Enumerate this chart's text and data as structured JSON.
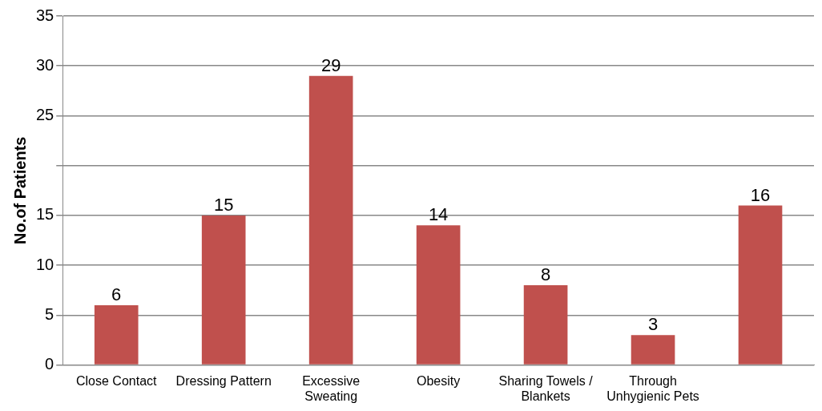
{
  "chart_data": {
    "type": "bar",
    "ylabel": "No.of Patients",
    "categories": [
      "Close Contact",
      "Dressing Pattern",
      "Excessive Sweating",
      "Obesity",
      "Sharing Towels / Blankets",
      "Through Unhygienic Pets",
      null
    ],
    "values": [
      6,
      15,
      29,
      14,
      8,
      3,
      16
    ],
    "color": "#c0504d",
    "ylim": [
      0,
      35
    ],
    "yticks": [
      0,
      5,
      10,
      15,
      {
        "value": 20,
        "label": null
      },
      25,
      30,
      35
    ],
    "grid": "y",
    "data_labels": true
  }
}
